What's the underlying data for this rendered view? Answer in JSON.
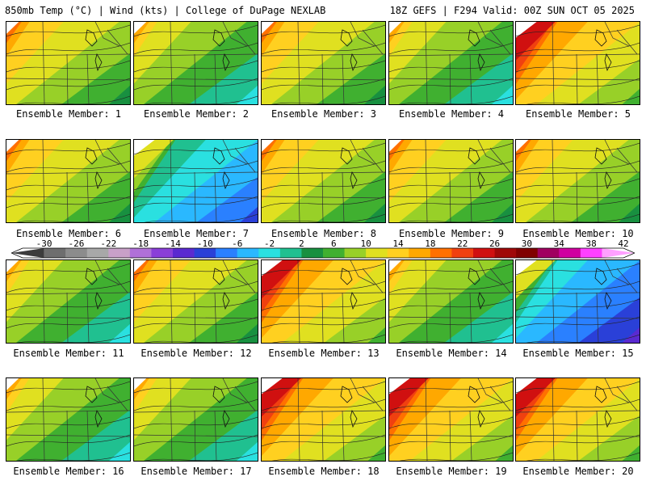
{
  "header": {
    "left": "850mb Temp (°C) | Wind (kts) | College of DuPage NEXLAB",
    "right": "18Z GEFS | F294 Valid: 00Z SUN OCT 05 2025"
  },
  "caption_prefix": "Ensemble Member: ",
  "members": [
    {
      "number": "1",
      "pattern": "warm"
    },
    {
      "number": "2",
      "pattern": "cool-ne"
    },
    {
      "number": "3",
      "pattern": "warm"
    },
    {
      "number": "4",
      "pattern": "cool-ne"
    },
    {
      "number": "5",
      "pattern": "hot"
    },
    {
      "number": "6",
      "pattern": "warm"
    },
    {
      "number": "7",
      "pattern": "cold"
    },
    {
      "number": "8",
      "pattern": "warm"
    },
    {
      "number": "9",
      "pattern": "warm"
    },
    {
      "number": "10",
      "pattern": "warm"
    },
    {
      "number": "11",
      "pattern": "cool-ne"
    },
    {
      "number": "12",
      "pattern": "warm"
    },
    {
      "number": "13",
      "pattern": "hot"
    },
    {
      "number": "14",
      "pattern": "cool-ne"
    },
    {
      "number": "15",
      "pattern": "very-cold"
    },
    {
      "number": "16",
      "pattern": "cool-ne"
    },
    {
      "number": "17",
      "pattern": "cool-ne"
    },
    {
      "number": "18",
      "pattern": "hot"
    },
    {
      "number": "19",
      "pattern": "hot"
    },
    {
      "number": "20",
      "pattern": "hot"
    }
  ],
  "colorbar": {
    "labels": [
      "-30",
      "-26",
      "-22",
      "-18",
      "-14",
      "-10",
      "-6",
      "-2",
      "2",
      "6",
      "10",
      "14",
      "18",
      "22",
      "26",
      "30",
      "34",
      "38",
      "42"
    ],
    "colors": [
      "#3c3c3c",
      "#6e6e6e",
      "#8c8c8c",
      "#a8a8a8",
      "#c8a0c8",
      "#b070d8",
      "#8a3fd8",
      "#5a2ad0",
      "#2a40d8",
      "#2a80ff",
      "#2ab8ff",
      "#2ae0e0",
      "#20c090",
      "#189040",
      "#40b030",
      "#98d028",
      "#e0e020",
      "#ffd020",
      "#ffa800",
      "#ff7000",
      "#f04010",
      "#d01010",
      "#a00808",
      "#800000",
      "#a00060",
      "#d000a0",
      "#ff40ff",
      "#ffa0ff"
    ]
  }
}
